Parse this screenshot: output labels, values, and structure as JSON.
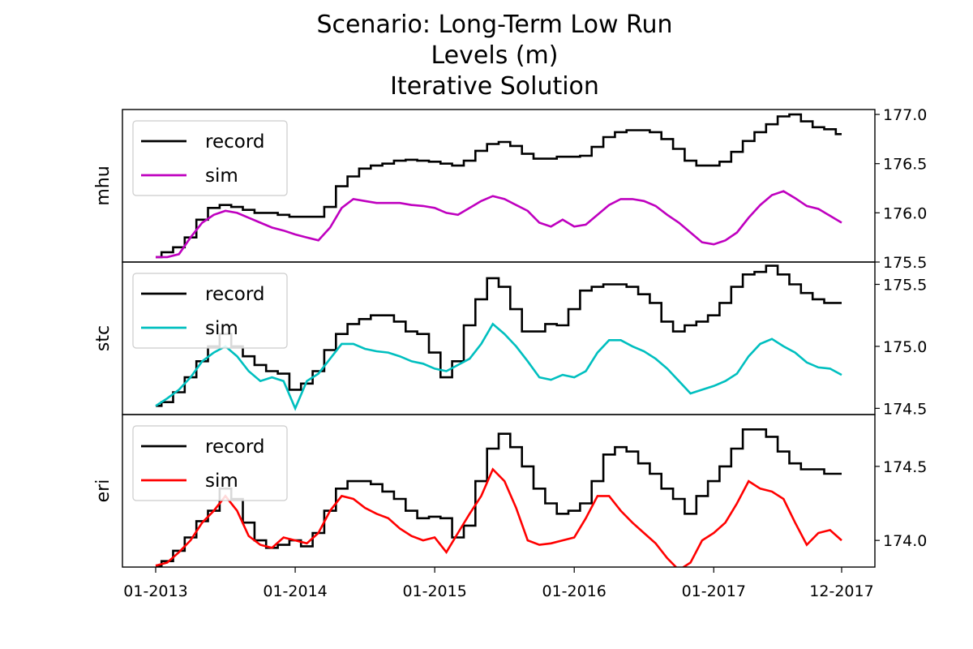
{
  "title_lines": [
    "Scenario: Long-Term Low Run",
    "Levels (m)",
    "Iterative Solution"
  ],
  "chart_data": [
    {
      "type": "line",
      "ylabel": "mhu",
      "ylim": [
        175.5,
        177.05
      ],
      "yticks": [
        175.5,
        176.0,
        176.5,
        177.0
      ],
      "ytick_labels": [
        "175.5",
        "176.0",
        "176.5",
        "177.0"
      ],
      "y_axis_side": "right",
      "legend_placement": "top-left",
      "series": [
        {
          "name": "record",
          "color": "#000000",
          "style": "step",
          "x": [
            "2013-01",
            "2013-02",
            "2013-03",
            "2013-04",
            "2013-05",
            "2013-06",
            "2013-07",
            "2013-08",
            "2013-09",
            "2013-10",
            "2013-11",
            "2013-12",
            "2014-01",
            "2014-02",
            "2014-03",
            "2014-04",
            "2014-05",
            "2014-06",
            "2014-07",
            "2014-08",
            "2014-09",
            "2014-10",
            "2014-11",
            "2014-12",
            "2015-01",
            "2015-02",
            "2015-03",
            "2015-04",
            "2015-05",
            "2015-06",
            "2015-07",
            "2015-08",
            "2015-09",
            "2015-10",
            "2015-11",
            "2015-12",
            "2016-01",
            "2016-02",
            "2016-03",
            "2016-04",
            "2016-05",
            "2016-06",
            "2016-07",
            "2016-08",
            "2016-09",
            "2016-10",
            "2016-11",
            "2016-12",
            "2017-01",
            "2017-02",
            "2017-03",
            "2017-04",
            "2017-05",
            "2017-06",
            "2017-07",
            "2017-08",
            "2017-09",
            "2017-10",
            "2017-11",
            "2017-12"
          ],
          "values": [
            175.55,
            175.6,
            175.65,
            175.75,
            175.93,
            176.05,
            176.08,
            176.06,
            176.03,
            176.0,
            176.0,
            175.98,
            175.96,
            175.96,
            175.96,
            176.06,
            176.27,
            176.37,
            176.45,
            176.48,
            176.5,
            176.53,
            176.54,
            176.53,
            176.52,
            176.5,
            176.48,
            176.53,
            176.63,
            176.7,
            176.72,
            176.68,
            176.6,
            176.55,
            176.55,
            176.57,
            176.57,
            176.58,
            176.67,
            176.77,
            176.82,
            176.84,
            176.84,
            176.82,
            176.75,
            176.65,
            176.53,
            176.48,
            176.48,
            176.52,
            176.62,
            176.73,
            176.82,
            176.9,
            176.98,
            177.0,
            176.93,
            176.87,
            176.85,
            176.8
          ]
        },
        {
          "name": "sim",
          "color": "#bf00bf",
          "style": "line",
          "x": [
            "2013-01",
            "2013-02",
            "2013-03",
            "2013-04",
            "2013-05",
            "2013-06",
            "2013-07",
            "2013-08",
            "2013-09",
            "2013-10",
            "2013-11",
            "2013-12",
            "2014-01",
            "2014-02",
            "2014-03",
            "2014-04",
            "2014-05",
            "2014-06",
            "2014-07",
            "2014-08",
            "2014-09",
            "2014-10",
            "2014-11",
            "2014-12",
            "2015-01",
            "2015-02",
            "2015-03",
            "2015-04",
            "2015-05",
            "2015-06",
            "2015-07",
            "2015-08",
            "2015-09",
            "2015-10",
            "2015-11",
            "2015-12",
            "2016-01",
            "2016-02",
            "2016-03",
            "2016-04",
            "2016-05",
            "2016-06",
            "2016-07",
            "2016-08",
            "2016-09",
            "2016-10",
            "2016-11",
            "2016-12",
            "2017-01",
            "2017-02",
            "2017-03",
            "2017-04",
            "2017-05",
            "2017-06",
            "2017-07",
            "2017-08",
            "2017-09",
            "2017-10",
            "2017-11",
            "2017-12"
          ],
          "values": [
            175.55,
            175.55,
            175.58,
            175.75,
            175.9,
            175.98,
            176.02,
            176.0,
            175.95,
            175.9,
            175.85,
            175.82,
            175.78,
            175.75,
            175.72,
            175.85,
            176.05,
            176.14,
            176.12,
            176.1,
            176.1,
            176.1,
            176.08,
            176.07,
            176.05,
            176.0,
            175.98,
            176.05,
            176.12,
            176.17,
            176.14,
            176.08,
            176.02,
            175.9,
            175.86,
            175.93,
            175.86,
            175.88,
            175.98,
            176.08,
            176.14,
            176.14,
            176.12,
            176.07,
            175.98,
            175.9,
            175.8,
            175.7,
            175.68,
            175.72,
            175.8,
            175.95,
            176.08,
            176.18,
            176.22,
            176.15,
            176.07,
            176.04,
            175.97,
            175.9
          ]
        }
      ]
    },
    {
      "type": "line",
      "ylabel": "stc",
      "ylim": [
        174.45,
        175.68
      ],
      "yticks": [
        174.5,
        175.0,
        175.5
      ],
      "ytick_labels": [
        "174.5",
        "175.0",
        "175.5"
      ],
      "y_axis_side": "right",
      "legend_placement": "top-left",
      "series": [
        {
          "name": "record",
          "color": "#000000",
          "style": "step",
          "x": [
            "2013-01",
            "2013-02",
            "2013-03",
            "2013-04",
            "2013-05",
            "2013-06",
            "2013-07",
            "2013-08",
            "2013-09",
            "2013-10",
            "2013-11",
            "2013-12",
            "2014-01",
            "2014-02",
            "2014-03",
            "2014-04",
            "2014-05",
            "2014-06",
            "2014-07",
            "2014-08",
            "2014-09",
            "2014-10",
            "2014-11",
            "2014-12",
            "2015-01",
            "2015-02",
            "2015-03",
            "2015-04",
            "2015-05",
            "2015-06",
            "2015-07",
            "2015-08",
            "2015-09",
            "2015-10",
            "2015-11",
            "2015-12",
            "2016-01",
            "2016-02",
            "2016-03",
            "2016-04",
            "2016-05",
            "2016-06",
            "2016-07",
            "2016-08",
            "2016-09",
            "2016-10",
            "2016-11",
            "2016-12",
            "2017-01",
            "2017-02",
            "2017-03",
            "2017-04",
            "2017-05",
            "2017-06",
            "2017-07",
            "2017-08",
            "2017-09",
            "2017-10",
            "2017-11",
            "2017-12"
          ],
          "values": [
            174.52,
            174.55,
            174.63,
            174.75,
            174.88,
            175.0,
            175.1,
            175.0,
            174.92,
            174.85,
            174.8,
            174.78,
            174.65,
            174.7,
            174.8,
            174.97,
            175.1,
            175.18,
            175.22,
            175.25,
            175.25,
            175.2,
            175.12,
            175.1,
            174.95,
            174.75,
            174.88,
            175.17,
            175.38,
            175.55,
            175.48,
            175.3,
            175.12,
            175.12,
            175.18,
            175.17,
            175.3,
            175.45,
            175.48,
            175.5,
            175.5,
            175.48,
            175.42,
            175.35,
            175.2,
            175.12,
            175.17,
            175.2,
            175.25,
            175.35,
            175.48,
            175.58,
            175.6,
            175.65,
            175.58,
            175.5,
            175.43,
            175.38,
            175.35,
            175.35
          ]
        },
        {
          "name": "sim",
          "color": "#00bfbf",
          "style": "line",
          "x": [
            "2013-01",
            "2013-02",
            "2013-03",
            "2013-04",
            "2013-05",
            "2013-06",
            "2013-07",
            "2013-08",
            "2013-09",
            "2013-10",
            "2013-11",
            "2013-12",
            "2014-01",
            "2014-02",
            "2014-03",
            "2014-04",
            "2014-05",
            "2014-06",
            "2014-07",
            "2014-08",
            "2014-09",
            "2014-10",
            "2014-11",
            "2014-12",
            "2015-01",
            "2015-02",
            "2015-03",
            "2015-04",
            "2015-05",
            "2015-06",
            "2015-07",
            "2015-08",
            "2015-09",
            "2015-10",
            "2015-11",
            "2015-12",
            "2016-01",
            "2016-02",
            "2016-03",
            "2016-04",
            "2016-05",
            "2016-06",
            "2016-07",
            "2016-08",
            "2016-09",
            "2016-10",
            "2016-11",
            "2016-12",
            "2017-01",
            "2017-02",
            "2017-03",
            "2017-04",
            "2017-05",
            "2017-06",
            "2017-07",
            "2017-08",
            "2017-09",
            "2017-10",
            "2017-11",
            "2017-12"
          ],
          "values": [
            174.52,
            174.58,
            174.65,
            174.75,
            174.88,
            174.95,
            175.0,
            174.92,
            174.8,
            174.72,
            174.75,
            174.72,
            174.5,
            174.72,
            174.78,
            174.9,
            175.02,
            175.02,
            174.98,
            174.96,
            174.95,
            174.92,
            174.88,
            174.86,
            174.82,
            174.8,
            174.85,
            174.9,
            175.02,
            175.18,
            175.1,
            175.0,
            174.88,
            174.75,
            174.73,
            174.77,
            174.75,
            174.8,
            174.95,
            175.05,
            175.05,
            175.0,
            174.96,
            174.9,
            174.82,
            174.72,
            174.62,
            174.65,
            174.68,
            174.72,
            174.78,
            174.92,
            175.02,
            175.06,
            175.0,
            174.95,
            174.87,
            174.83,
            174.82,
            174.77
          ]
        }
      ]
    },
    {
      "type": "line",
      "ylabel": "eri",
      "ylim": [
        173.82,
        174.85
      ],
      "yticks": [
        174.0,
        174.5
      ],
      "ytick_labels": [
        "174.0",
        "174.5"
      ],
      "y_axis_side": "right",
      "legend_placement": "top-left",
      "series": [
        {
          "name": "record",
          "color": "#000000",
          "style": "step",
          "x": [
            "2013-01",
            "2013-02",
            "2013-03",
            "2013-04",
            "2013-05",
            "2013-06",
            "2013-07",
            "2013-08",
            "2013-09",
            "2013-10",
            "2013-11",
            "2013-12",
            "2014-01",
            "2014-02",
            "2014-03",
            "2014-04",
            "2014-05",
            "2014-06",
            "2014-07",
            "2014-08",
            "2014-09",
            "2014-10",
            "2014-11",
            "2014-12",
            "2015-01",
            "2015-02",
            "2015-03",
            "2015-04",
            "2015-05",
            "2015-06",
            "2015-07",
            "2015-08",
            "2015-09",
            "2015-10",
            "2015-11",
            "2015-12",
            "2016-01",
            "2016-02",
            "2016-03",
            "2016-04",
            "2016-05",
            "2016-06",
            "2016-07",
            "2016-08",
            "2016-09",
            "2016-10",
            "2016-11",
            "2016-12",
            "2017-01",
            "2017-02",
            "2017-03",
            "2017-04",
            "2017-05",
            "2017-06",
            "2017-07",
            "2017-08",
            "2017-09",
            "2017-10",
            "2017-11",
            "2017-12"
          ],
          "values": [
            173.83,
            173.86,
            173.93,
            174.02,
            174.13,
            174.2,
            174.35,
            174.28,
            174.12,
            174.0,
            173.95,
            173.97,
            174.0,
            173.96,
            174.05,
            174.2,
            174.35,
            174.4,
            174.4,
            174.38,
            174.33,
            174.28,
            174.2,
            174.15,
            174.16,
            174.15,
            174.02,
            174.1,
            174.4,
            174.62,
            174.72,
            174.63,
            174.5,
            174.35,
            174.25,
            174.18,
            174.2,
            174.25,
            174.4,
            174.58,
            174.63,
            174.6,
            174.52,
            174.45,
            174.35,
            174.28,
            174.18,
            174.3,
            174.4,
            174.5,
            174.62,
            174.75,
            174.75,
            174.7,
            174.6,
            174.52,
            174.48,
            174.48,
            174.45,
            174.45
          ]
        },
        {
          "name": "sim",
          "color": "#ff0000",
          "style": "line",
          "x": [
            "2013-01",
            "2013-02",
            "2013-03",
            "2013-04",
            "2013-05",
            "2013-06",
            "2013-07",
            "2013-08",
            "2013-09",
            "2013-10",
            "2013-11",
            "2013-12",
            "2014-01",
            "2014-02",
            "2014-03",
            "2014-04",
            "2014-05",
            "2014-06",
            "2014-07",
            "2014-08",
            "2014-09",
            "2014-10",
            "2014-11",
            "2014-12",
            "2015-01",
            "2015-02",
            "2015-03",
            "2015-04",
            "2015-05",
            "2015-06",
            "2015-07",
            "2015-08",
            "2015-09",
            "2015-10",
            "2015-11",
            "2015-12",
            "2016-01",
            "2016-02",
            "2016-03",
            "2016-04",
            "2016-05",
            "2016-06",
            "2016-07",
            "2016-08",
            "2016-09",
            "2016-10",
            "2016-11",
            "2016-12",
            "2017-01",
            "2017-02",
            "2017-03",
            "2017-04",
            "2017-05",
            "2017-06",
            "2017-07",
            "2017-08",
            "2017-09",
            "2017-10",
            "2017-11",
            "2017-12"
          ],
          "values": [
            173.83,
            173.85,
            173.92,
            174.0,
            174.12,
            174.2,
            174.3,
            174.2,
            174.03,
            173.97,
            173.95,
            174.02,
            174.0,
            173.98,
            174.05,
            174.2,
            174.3,
            174.28,
            174.22,
            174.18,
            174.15,
            174.08,
            174.03,
            174.0,
            174.02,
            173.92,
            174.05,
            174.18,
            174.3,
            174.48,
            174.4,
            174.22,
            174.0,
            173.97,
            173.98,
            174.0,
            174.02,
            174.15,
            174.3,
            174.3,
            174.2,
            174.12,
            174.05,
            173.98,
            173.88,
            173.8,
            173.85,
            174.0,
            174.05,
            174.12,
            174.25,
            174.4,
            174.35,
            174.33,
            174.28,
            174.12,
            173.97,
            174.05,
            174.07,
            174.0
          ]
        }
      ]
    }
  ],
  "x_axis": {
    "ticks": [
      "2013-01",
      "2014-01",
      "2015-01",
      "2016-01",
      "2017-01",
      "2017-12"
    ],
    "tick_labels": [
      "01-2013",
      "01-2014",
      "01-2015",
      "01-2016",
      "01-2017",
      "12-2017"
    ]
  }
}
